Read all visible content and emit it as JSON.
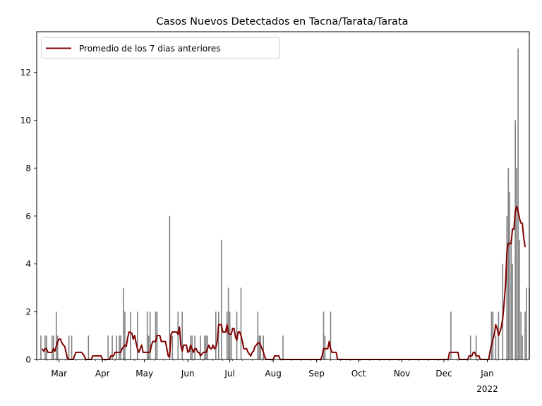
{
  "chart_data": {
    "type": "bar+line",
    "title": "Casos Nuevos Detectados en Tacna/Tarata/Tarata",
    "xlabel": "",
    "ylabel": "",
    "ylim": [
      0,
      13.7
    ],
    "yticks": [
      0,
      2,
      4,
      6,
      8,
      10,
      12
    ],
    "x_range": [
      "2021-02-13",
      "2022-01-31"
    ],
    "xticks": [
      {
        "date": "2021-03-01",
        "label": "Mar"
      },
      {
        "date": "2021-04-01",
        "label": "Apr"
      },
      {
        "date": "2021-05-01",
        "label": "May"
      },
      {
        "date": "2021-06-01",
        "label": "Jun"
      },
      {
        "date": "2021-07-01",
        "label": "Jul"
      },
      {
        "date": "2021-08-01",
        "label": "Aug"
      },
      {
        "date": "2021-09-01",
        "label": "Sep"
      },
      {
        "date": "2021-10-01",
        "label": "Oct"
      },
      {
        "date": "2021-11-01",
        "label": "Nov"
      },
      {
        "date": "2021-12-01",
        "label": "Dec"
      },
      {
        "date": "2022-01-01",
        "label": "Jan",
        "sublabel": "2022"
      }
    ],
    "legend": {
      "position": "upper-left",
      "entries": [
        "Promedio de los 7 dias anteriores"
      ]
    },
    "bar_color": "#808080",
    "line_color": "#800000",
    "bars": [
      [
        "2021-02-16",
        1
      ],
      [
        "2021-02-19",
        1
      ],
      [
        "2021-02-20",
        1
      ],
      [
        "2021-02-24",
        1
      ],
      [
        "2021-02-25",
        1
      ],
      [
        "2021-02-27",
        2
      ],
      [
        "2021-02-28",
        1
      ],
      [
        "2021-03-08",
        1
      ],
      [
        "2021-03-10",
        1
      ],
      [
        "2021-03-22",
        1
      ],
      [
        "2021-04-05",
        1
      ],
      [
        "2021-04-08",
        1
      ],
      [
        "2021-04-11",
        1
      ],
      [
        "2021-04-13",
        1
      ],
      [
        "2021-04-14",
        1
      ],
      [
        "2021-04-16",
        3
      ],
      [
        "2021-04-17",
        2
      ],
      [
        "2021-04-21",
        2
      ],
      [
        "2021-04-26",
        2
      ],
      [
        "2021-05-03",
        2
      ],
      [
        "2021-05-04",
        1
      ],
      [
        "2021-05-05",
        2
      ],
      [
        "2021-05-09",
        2
      ],
      [
        "2021-05-10",
        2
      ],
      [
        "2021-05-19",
        6
      ],
      [
        "2021-05-21",
        1
      ],
      [
        "2021-05-25",
        2
      ],
      [
        "2021-05-28",
        2
      ],
      [
        "2021-06-03",
        1
      ],
      [
        "2021-06-04",
        1
      ],
      [
        "2021-06-06",
        1
      ],
      [
        "2021-06-10",
        1
      ],
      [
        "2021-06-13",
        1
      ],
      [
        "2021-06-14",
        1
      ],
      [
        "2021-06-15",
        1
      ],
      [
        "2021-06-21",
        2
      ],
      [
        "2021-06-23",
        2
      ],
      [
        "2021-06-25",
        5
      ],
      [
        "2021-06-29",
        2
      ],
      [
        "2021-06-30",
        3
      ],
      [
        "2021-07-01",
        2
      ],
      [
        "2021-07-02",
        1
      ],
      [
        "2021-07-06",
        2
      ],
      [
        "2021-07-09",
        3
      ],
      [
        "2021-07-21",
        2
      ],
      [
        "2021-07-22",
        1
      ],
      [
        "2021-07-23",
        1
      ],
      [
        "2021-07-25",
        1
      ],
      [
        "2021-08-08",
        1
      ],
      [
        "2021-09-06",
        2
      ],
      [
        "2021-09-07",
        1
      ],
      [
        "2021-09-11",
        2
      ],
      [
        "2021-12-06",
        2
      ],
      [
        "2021-12-20",
        1
      ],
      [
        "2021-12-24",
        1
      ],
      [
        "2022-01-04",
        2
      ],
      [
        "2022-01-05",
        2
      ],
      [
        "2022-01-07",
        1
      ],
      [
        "2022-01-09",
        2
      ],
      [
        "2022-01-12",
        4
      ],
      [
        "2022-01-15",
        6
      ],
      [
        "2022-01-16",
        8
      ],
      [
        "2022-01-17",
        7
      ],
      [
        "2022-01-18",
        5
      ],
      [
        "2022-01-19",
        4
      ],
      [
        "2022-01-21",
        10
      ],
      [
        "2022-01-22",
        8
      ],
      [
        "2022-01-23",
        13
      ],
      [
        "2022-01-24",
        5
      ],
      [
        "2022-01-25",
        2
      ],
      [
        "2022-01-26",
        1
      ],
      [
        "2022-01-28",
        2
      ],
      [
        "2022-01-29",
        3
      ],
      [
        "2022-01-31",
        3
      ]
    ],
    "series": [
      {
        "name": "Promedio de los 7 dias anteriores",
        "points": [
          [
            "2021-02-17",
            0.45
          ],
          [
            "2021-02-18",
            0.35
          ],
          [
            "2021-02-19",
            0.45
          ],
          [
            "2021-02-20",
            0.45
          ],
          [
            "2021-02-21",
            0.3
          ],
          [
            "2021-02-24",
            0.3
          ],
          [
            "2021-02-25",
            0.45
          ],
          [
            "2021-02-26",
            0.35
          ],
          [
            "2021-02-27",
            0.55
          ],
          [
            "2021-02-28",
            0.75
          ],
          [
            "2021-03-01",
            0.85
          ],
          [
            "2021-03-02",
            0.85
          ],
          [
            "2021-03-03",
            0.7
          ],
          [
            "2021-03-04",
            0.6
          ],
          [
            "2021-03-05",
            0.55
          ],
          [
            "2021-03-06",
            0.3
          ],
          [
            "2021-03-07",
            0.05
          ],
          [
            "2021-03-08",
            0.0
          ],
          [
            "2021-03-11",
            0.0
          ],
          [
            "2021-03-12",
            0.15
          ],
          [
            "2021-03-13",
            0.3
          ],
          [
            "2021-03-17",
            0.3
          ],
          [
            "2021-03-19",
            0.15
          ],
          [
            "2021-03-20",
            0.0
          ],
          [
            "2021-03-24",
            0.0
          ],
          [
            "2021-03-25",
            0.15
          ],
          [
            "2021-03-31",
            0.15
          ],
          [
            "2021-04-01",
            0.0
          ],
          [
            "2021-04-06",
            0.0
          ],
          [
            "2021-04-07",
            0.15
          ],
          [
            "2021-04-09",
            0.15
          ],
          [
            "2021-04-10",
            0.3
          ],
          [
            "2021-04-14",
            0.3
          ],
          [
            "2021-04-15",
            0.45
          ],
          [
            "2021-04-17",
            0.6
          ],
          [
            "2021-04-18",
            0.55
          ],
          [
            "2021-04-19",
            0.9
          ],
          [
            "2021-04-20",
            1.15
          ],
          [
            "2021-04-22",
            1.1
          ],
          [
            "2021-04-23",
            0.85
          ],
          [
            "2021-04-24",
            1.0
          ],
          [
            "2021-04-25",
            0.7
          ],
          [
            "2021-04-26",
            0.45
          ],
          [
            "2021-04-27",
            0.3
          ],
          [
            "2021-04-28",
            0.45
          ],
          [
            "2021-04-29",
            0.6
          ],
          [
            "2021-04-30",
            0.3
          ],
          [
            "2021-05-01",
            0.3
          ],
          [
            "2021-05-05",
            0.3
          ],
          [
            "2021-05-06",
            0.6
          ],
          [
            "2021-05-07",
            0.75
          ],
          [
            "2021-05-08",
            0.75
          ],
          [
            "2021-05-09",
            0.75
          ],
          [
            "2021-05-10",
            1.0
          ],
          [
            "2021-05-12",
            1.0
          ],
          [
            "2021-05-13",
            0.75
          ],
          [
            "2021-05-16",
            0.75
          ],
          [
            "2021-05-17",
            0.45
          ],
          [
            "2021-05-18",
            0.15
          ],
          [
            "2021-05-19",
            0.1
          ],
          [
            "2021-05-20",
            1.05
          ],
          [
            "2021-05-21",
            1.15
          ],
          [
            "2021-05-24",
            1.15
          ],
          [
            "2021-05-25",
            1.05
          ],
          [
            "2021-05-26",
            1.35
          ],
          [
            "2021-05-27",
            0.6
          ],
          [
            "2021-05-28",
            0.35
          ],
          [
            "2021-05-29",
            0.6
          ],
          [
            "2021-05-31",
            0.6
          ],
          [
            "2021-06-01",
            0.3
          ],
          [
            "2021-06-02",
            0.35
          ],
          [
            "2021-06-03",
            0.6
          ],
          [
            "2021-06-05",
            0.3
          ],
          [
            "2021-06-06",
            0.45
          ],
          [
            "2021-06-07",
            0.45
          ],
          [
            "2021-06-08",
            0.3
          ],
          [
            "2021-06-09",
            0.3
          ],
          [
            "2021-06-10",
            0.15
          ],
          [
            "2021-06-12",
            0.3
          ],
          [
            "2021-06-14",
            0.3
          ],
          [
            "2021-06-15",
            0.45
          ],
          [
            "2021-06-16",
            0.6
          ],
          [
            "2021-06-17",
            0.45
          ],
          [
            "2021-06-18",
            0.45
          ],
          [
            "2021-06-19",
            0.6
          ],
          [
            "2021-06-20",
            0.45
          ],
          [
            "2021-06-21",
            0.5
          ],
          [
            "2021-06-22",
            0.75
          ],
          [
            "2021-06-23",
            1.45
          ],
          [
            "2021-06-25",
            1.45
          ],
          [
            "2021-06-26",
            1.15
          ],
          [
            "2021-06-28",
            1.15
          ],
          [
            "2021-06-29",
            1.45
          ],
          [
            "2021-06-30",
            1.1
          ],
          [
            "2021-07-01",
            1.05
          ],
          [
            "2021-07-02",
            1.05
          ],
          [
            "2021-07-03",
            1.3
          ],
          [
            "2021-07-04",
            1.3
          ],
          [
            "2021-07-05",
            0.95
          ],
          [
            "2021-07-06",
            0.8
          ],
          [
            "2021-07-07",
            1.15
          ],
          [
            "2021-07-08",
            1.15
          ],
          [
            "2021-07-09",
            1.0
          ],
          [
            "2021-07-10",
            0.75
          ],
          [
            "2021-07-11",
            0.45
          ],
          [
            "2021-07-13",
            0.45
          ],
          [
            "2021-07-14",
            0.3
          ],
          [
            "2021-07-16",
            0.15
          ],
          [
            "2021-07-17",
            0.3
          ],
          [
            "2021-07-18",
            0.35
          ],
          [
            "2021-07-19",
            0.55
          ],
          [
            "2021-07-20",
            0.6
          ],
          [
            "2021-07-21",
            0.7
          ],
          [
            "2021-07-22",
            0.7
          ],
          [
            "2021-07-23",
            0.6
          ],
          [
            "2021-07-25",
            0.3
          ],
          [
            "2021-07-26",
            0.1
          ],
          [
            "2021-07-27",
            0.0
          ],
          [
            "2021-07-31",
            0.0
          ],
          [
            "2021-08-01",
            0.0
          ],
          [
            "2021-08-02",
            0.15
          ],
          [
            "2021-08-05",
            0.15
          ],
          [
            "2021-08-06",
            0.0
          ],
          [
            "2021-09-04",
            0.0
          ],
          [
            "2021-09-05",
            0.15
          ],
          [
            "2021-09-06",
            0.45
          ],
          [
            "2021-09-09",
            0.45
          ],
          [
            "2021-09-10",
            0.75
          ],
          [
            "2021-09-11",
            0.45
          ],
          [
            "2021-09-12",
            0.3
          ],
          [
            "2021-09-15",
            0.3
          ],
          [
            "2021-09-16",
            0.0
          ],
          [
            "2021-12-04",
            0.0
          ],
          [
            "2021-12-05",
            0.3
          ],
          [
            "2021-12-11",
            0.3
          ],
          [
            "2021-12-12",
            0.0
          ],
          [
            "2021-12-18",
            0.0
          ],
          [
            "2021-12-19",
            0.15
          ],
          [
            "2021-12-21",
            0.15
          ],
          [
            "2021-12-22",
            0.3
          ],
          [
            "2021-12-23",
            0.3
          ],
          [
            "2021-12-24",
            0.15
          ],
          [
            "2021-12-26",
            0.15
          ],
          [
            "2021-12-27",
            0.0
          ],
          [
            "2022-01-02",
            0.0
          ],
          [
            "2022-01-03",
            0.35
          ],
          [
            "2022-01-04",
            0.6
          ],
          [
            "2022-01-05",
            0.85
          ],
          [
            "2022-01-06",
            1.05
          ],
          [
            "2022-01-07",
            1.45
          ],
          [
            "2022-01-08",
            1.3
          ],
          [
            "2022-01-09",
            1.0
          ],
          [
            "2022-01-10",
            1.15
          ],
          [
            "2022-01-11",
            1.35
          ],
          [
            "2022-01-12",
            1.7
          ],
          [
            "2022-01-13",
            2.35
          ],
          [
            "2022-01-14",
            3.1
          ],
          [
            "2022-01-15",
            4.5
          ],
          [
            "2022-01-16",
            4.85
          ],
          [
            "2022-01-18",
            4.85
          ],
          [
            "2022-01-19",
            5.45
          ],
          [
            "2022-01-20",
            5.45
          ],
          [
            "2022-01-21",
            6.2
          ],
          [
            "2022-01-22",
            6.4
          ],
          [
            "2022-01-23",
            6.2
          ],
          [
            "2022-01-24",
            5.9
          ],
          [
            "2022-01-25",
            5.7
          ],
          [
            "2022-01-26",
            5.7
          ],
          [
            "2022-01-27",
            5.1
          ],
          [
            "2022-01-28",
            4.7
          ]
        ]
      }
    ]
  }
}
